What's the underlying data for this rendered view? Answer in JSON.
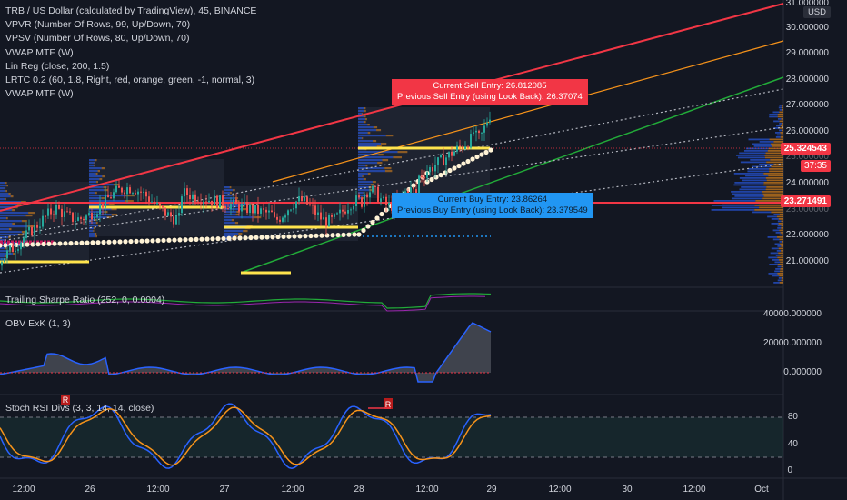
{
  "symbol_title": "TRB / US Dollar (calculated by TradingView), 45, BINANCE",
  "indicators": [
    "VPVR (Number Of Rows, 99, Up/Down, 70)",
    "VPSV (Number Of Rows, 80, Up/Down, 70)",
    "VWAP MTF (W)",
    "Lin Reg (close, 200, 1.5)",
    "LRTC 0.2 (60, 1.8, Right, red, orange, green, -1, normal, 3)",
    "VWAP MTF (W)"
  ],
  "currency_badge": "USD",
  "price_axis": [
    "31.000000",
    "30.000000",
    "29.000000",
    "28.000000",
    "27.000000",
    "26.000000",
    "25.000000",
    "24.000000",
    "23.000000",
    "22.000000",
    "21.000000"
  ],
  "price_tags": {
    "current": "25.324543",
    "countdown": "37:35",
    "buy_line": "23.271491"
  },
  "sell_tooltip": {
    "line1": "Current Sell Entry: 26.812085",
    "line2": "Previous Sell Entry (using Look Back): 26.37074"
  },
  "buy_tooltip": {
    "line1": "Current Buy Entry: 23.86264",
    "line2": "Previous Buy Entry (using Look Back): 23.379549"
  },
  "pane_sharpe": {
    "label": "Trailing Sharpe Ratio (252, 0, 0.0004)"
  },
  "pane_obv": {
    "label": "OBV ExK (1, 3)",
    "ticks": [
      "40000.000000",
      "20000.000000",
      "0.000000"
    ]
  },
  "pane_stoch": {
    "label": "Stoch RSI Divs (3, 3, 14, 14, close)",
    "ticks": [
      "80",
      "40",
      "0"
    ],
    "markers": [
      "R",
      "R"
    ]
  },
  "time_axis": [
    "12:00",
    "26",
    "12:00",
    "27",
    "12:00",
    "28",
    "12:00",
    "29",
    "12:00",
    "30",
    "12:00",
    "Oct"
  ],
  "colors": {
    "background": "#131722",
    "up": "#26a69a",
    "down": "#ef5350",
    "red_channel": "#f23645",
    "orange_channel": "#f7931a",
    "green_channel": "#22ab39",
    "vwap_yellow": "#ffe44d",
    "volume_blue": "#2962ff",
    "sell_tag": "#f23645",
    "buy_tag": "#2196f3"
  }
}
